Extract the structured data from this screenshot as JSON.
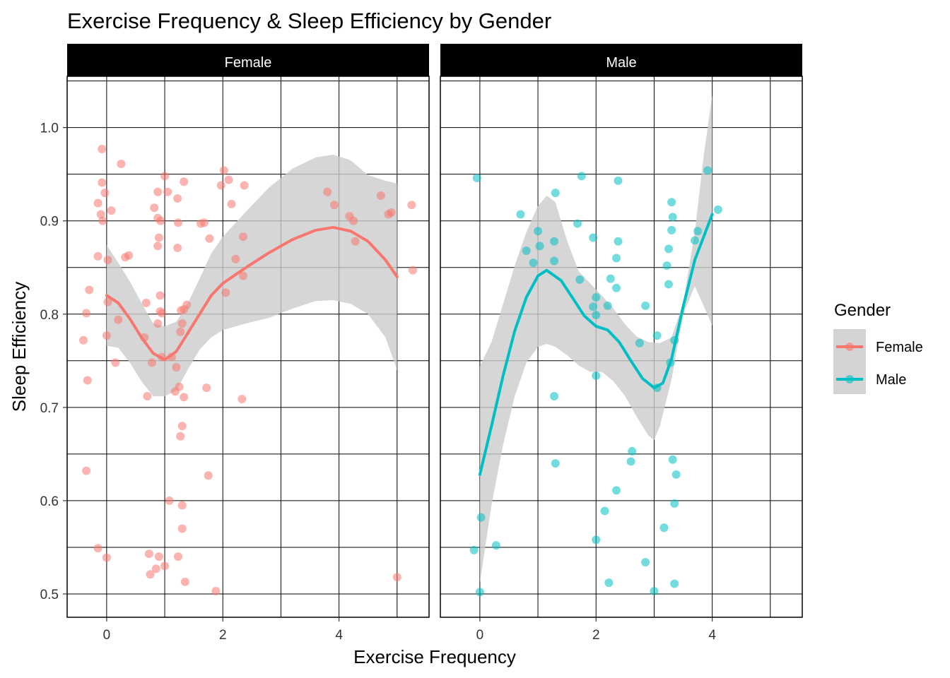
{
  "chart_data": {
    "type": "scatter",
    "title": "Exercise Frequency & Sleep Efficiency by Gender",
    "xlabel": "Exercise Frequency",
    "ylabel": "Sleep Efficiency",
    "xlim": [
      -0.68,
      5.55
    ],
    "ylim": [
      0.475,
      1.055
    ],
    "x_ticks": [
      0,
      2,
      4
    ],
    "y_ticks": [
      0.5,
      0.6,
      0.7,
      0.8,
      0.9,
      1.0
    ],
    "y_tick_labels": [
      "0.5",
      "0.6",
      "0.7",
      "0.8",
      "0.9",
      "1.0"
    ],
    "grid": true,
    "legend": {
      "title": "Gender",
      "placement": "right",
      "entries": [
        "Female",
        "Male"
      ]
    },
    "panels": [
      {
        "name": "Female",
        "color": "#F8766D",
        "points": [
          [
            -0.08,
            0.977
          ],
          [
            0.25,
            0.961
          ],
          [
            -0.08,
            0.941
          ],
          [
            -0.03,
            0.93
          ],
          [
            -0.15,
            0.919
          ],
          [
            0.08,
            0.911
          ],
          [
            -0.1,
            0.907
          ],
          [
            -0.07,
            0.9
          ],
          [
            -0.15,
            0.862
          ],
          [
            0.32,
            0.861
          ],
          [
            0.38,
            0.863
          ],
          [
            0.02,
            0.858
          ],
          [
            -0.3,
            0.826
          ],
          [
            0.02,
            0.813
          ],
          [
            -0.35,
            0.801
          ],
          [
            0.2,
            0.794
          ],
          [
            0.0,
            0.777
          ],
          [
            -0.4,
            0.772
          ],
          [
            0.15,
            0.748
          ],
          [
            -0.33,
            0.729
          ],
          [
            -0.35,
            0.632
          ],
          [
            -0.15,
            0.549
          ],
          [
            0.0,
            0.539
          ],
          [
            1.0,
            0.948
          ],
          [
            0.88,
            0.931
          ],
          [
            1.05,
            0.931
          ],
          [
            1.33,
            0.942
          ],
          [
            1.22,
            0.924
          ],
          [
            0.82,
            0.914
          ],
          [
            0.88,
            0.903
          ],
          [
            0.93,
            0.9
          ],
          [
            1.23,
            0.898
          ],
          [
            1.62,
            0.897
          ],
          [
            1.68,
            0.898
          ],
          [
            0.9,
            0.882
          ],
          [
            1.77,
            0.881
          ],
          [
            0.88,
            0.873
          ],
          [
            1.22,
            0.871
          ],
          [
            0.68,
            0.812
          ],
          [
            0.92,
            0.82
          ],
          [
            1.38,
            0.81
          ],
          [
            0.92,
            0.803
          ],
          [
            1.33,
            0.805
          ],
          [
            1.28,
            0.804
          ],
          [
            0.95,
            0.801
          ],
          [
            1.3,
            0.79
          ],
          [
            0.88,
            0.79
          ],
          [
            1.27,
            0.781
          ],
          [
            0.65,
            0.775
          ],
          [
            0.95,
            0.754
          ],
          [
            1.12,
            0.754
          ],
          [
            0.78,
            0.748
          ],
          [
            1.2,
            0.743
          ],
          [
            1.25,
            0.722
          ],
          [
            1.18,
            0.717
          ],
          [
            1.33,
            0.711
          ],
          [
            0.7,
            0.712
          ],
          [
            1.72,
            0.721
          ],
          [
            1.3,
            0.68
          ],
          [
            1.27,
            0.669
          ],
          [
            1.75,
            0.627
          ],
          [
            1.08,
            0.6
          ],
          [
            1.3,
            0.595
          ],
          [
            1.3,
            0.57
          ],
          [
            0.73,
            0.543
          ],
          [
            0.9,
            0.54
          ],
          [
            1.23,
            0.54
          ],
          [
            0.85,
            0.527
          ],
          [
            1.0,
            0.53
          ],
          [
            0.75,
            0.521
          ],
          [
            1.35,
            0.513
          ],
          [
            1.88,
            0.503
          ],
          [
            2.02,
            0.954
          ],
          [
            2.1,
            0.944
          ],
          [
            1.97,
            0.938
          ],
          [
            2.37,
            0.938
          ],
          [
            2.15,
            0.918
          ],
          [
            2.35,
            0.883
          ],
          [
            2.22,
            0.859
          ],
          [
            2.35,
            0.841
          ],
          [
            2.05,
            0.823
          ],
          [
            2.33,
            0.709
          ],
          [
            3.8,
            0.931
          ],
          [
            3.92,
            0.917
          ],
          [
            4.18,
            0.905
          ],
          [
            4.25,
            0.9
          ],
          [
            4.28,
            0.878
          ],
          [
            4.72,
            0.927
          ],
          [
            4.85,
            0.907
          ],
          [
            4.9,
            0.909
          ],
          [
            5.25,
            0.917
          ],
          [
            5.27,
            0.847
          ],
          [
            5.0,
            0.518
          ]
        ],
        "smooth": [
          [
            0.0,
            0.82
          ],
          [
            0.2,
            0.812
          ],
          [
            0.4,
            0.795
          ],
          [
            0.6,
            0.775
          ],
          [
            0.8,
            0.758
          ],
          [
            1.0,
            0.751
          ],
          [
            1.2,
            0.76
          ],
          [
            1.4,
            0.78
          ],
          [
            1.6,
            0.8
          ],
          [
            1.8,
            0.82
          ],
          [
            2.0,
            0.833
          ],
          [
            2.4,
            0.85
          ],
          [
            2.8,
            0.866
          ],
          [
            3.2,
            0.88
          ],
          [
            3.6,
            0.89
          ],
          [
            3.9,
            0.893
          ],
          [
            4.2,
            0.889
          ],
          [
            4.5,
            0.878
          ],
          [
            4.8,
            0.858
          ],
          [
            5.0,
            0.84
          ]
        ],
        "ribbon_upper": [
          [
            0.0,
            0.874
          ],
          [
            0.2,
            0.855
          ],
          [
            0.4,
            0.835
          ],
          [
            0.6,
            0.812
          ],
          [
            0.8,
            0.79
          ],
          [
            1.0,
            0.787
          ],
          [
            1.2,
            0.792
          ],
          [
            1.4,
            0.812
          ],
          [
            1.6,
            0.838
          ],
          [
            1.8,
            0.865
          ],
          [
            2.0,
            0.883
          ],
          [
            2.4,
            0.91
          ],
          [
            2.8,
            0.936
          ],
          [
            3.2,
            0.956
          ],
          [
            3.6,
            0.968
          ],
          [
            3.9,
            0.971
          ],
          [
            4.2,
            0.965
          ],
          [
            4.5,
            0.949
          ],
          [
            4.8,
            0.943
          ],
          [
            5.0,
            0.94
          ]
        ],
        "ribbon_lower": [
          [
            0.0,
            0.766
          ],
          [
            0.2,
            0.764
          ],
          [
            0.4,
            0.748
          ],
          [
            0.6,
            0.728
          ],
          [
            0.8,
            0.712
          ],
          [
            1.0,
            0.712
          ],
          [
            1.2,
            0.718
          ],
          [
            1.4,
            0.741
          ],
          [
            1.6,
            0.762
          ],
          [
            1.8,
            0.775
          ],
          [
            2.0,
            0.783
          ],
          [
            2.4,
            0.79
          ],
          [
            2.8,
            0.796
          ],
          [
            3.2,
            0.806
          ],
          [
            3.6,
            0.814
          ],
          [
            3.9,
            0.815
          ],
          [
            4.2,
            0.811
          ],
          [
            4.5,
            0.8
          ],
          [
            4.8,
            0.775
          ],
          [
            5.0,
            0.74
          ]
        ]
      },
      {
        "name": "Male",
        "color": "#00BFC4",
        "points": [
          [
            -0.05,
            0.946
          ],
          [
            0.7,
            0.907
          ],
          [
            1.0,
            0.889
          ],
          [
            1.3,
            0.93
          ],
          [
            1.75,
            0.948
          ],
          [
            1.68,
            0.897
          ],
          [
            1.95,
            0.882
          ],
          [
            2.38,
            0.943
          ],
          [
            0.8,
            0.868
          ],
          [
            1.03,
            0.873
          ],
          [
            1.28,
            0.878
          ],
          [
            0.92,
            0.855
          ],
          [
            1.28,
            0.857
          ],
          [
            1.72,
            0.837
          ],
          [
            2.38,
            0.878
          ],
          [
            2.35,
            0.86
          ],
          [
            2.25,
            0.838
          ],
          [
            2.35,
            0.828
          ],
          [
            2.2,
            0.809
          ],
          [
            1.95,
            0.808
          ],
          [
            2.0,
            0.818
          ],
          [
            2.0,
            0.799
          ],
          [
            2.85,
            0.809
          ],
          [
            2.0,
            0.734
          ],
          [
            1.28,
            0.712
          ],
          [
            2.75,
            0.769
          ],
          [
            3.05,
            0.777
          ],
          [
            3.3,
            0.92
          ],
          [
            3.32,
            0.904
          ],
          [
            3.25,
            0.87
          ],
          [
            3.22,
            0.852
          ],
          [
            3.25,
            0.832
          ],
          [
            3.3,
            0.89
          ],
          [
            3.35,
            0.772
          ],
          [
            3.28,
            0.748
          ],
          [
            3.05,
            0.721
          ],
          [
            3.7,
            0.879
          ],
          [
            3.75,
            0.889
          ],
          [
            3.92,
            0.954
          ],
          [
            4.1,
            0.912
          ],
          [
            2.62,
            0.653
          ],
          [
            2.6,
            0.642
          ],
          [
            1.3,
            0.64
          ],
          [
            2.35,
            0.611
          ],
          [
            2.15,
            0.589
          ],
          [
            0.02,
            0.582
          ],
          [
            2.0,
            0.558
          ],
          [
            0.28,
            0.552
          ],
          [
            -0.1,
            0.547
          ],
          [
            3.32,
            0.644
          ],
          [
            3.38,
            0.628
          ],
          [
            3.35,
            0.597
          ],
          [
            3.17,
            0.571
          ],
          [
            2.85,
            0.534
          ],
          [
            2.22,
            0.512
          ],
          [
            3.35,
            0.511
          ],
          [
            0.0,
            0.502
          ],
          [
            3.0,
            0.503
          ]
        ],
        "smooth": [
          [
            0.0,
            0.628
          ],
          [
            0.2,
            0.68
          ],
          [
            0.4,
            0.734
          ],
          [
            0.6,
            0.782
          ],
          [
            0.8,
            0.818
          ],
          [
            1.0,
            0.841
          ],
          [
            1.15,
            0.847
          ],
          [
            1.4,
            0.836
          ],
          [
            1.6,
            0.817
          ],
          [
            1.8,
            0.798
          ],
          [
            2.0,
            0.787
          ],
          [
            2.2,
            0.783
          ],
          [
            2.4,
            0.77
          ],
          [
            2.6,
            0.75
          ],
          [
            2.8,
            0.731
          ],
          [
            3.0,
            0.721
          ],
          [
            3.15,
            0.726
          ],
          [
            3.3,
            0.752
          ],
          [
            3.5,
            0.808
          ],
          [
            3.7,
            0.858
          ],
          [
            4.0,
            0.907
          ]
        ],
        "ribbon_upper": [
          [
            0.0,
            0.744
          ],
          [
            0.2,
            0.77
          ],
          [
            0.4,
            0.811
          ],
          [
            0.6,
            0.852
          ],
          [
            0.8,
            0.888
          ],
          [
            1.0,
            0.916
          ],
          [
            1.15,
            0.927
          ],
          [
            1.3,
            0.92
          ],
          [
            1.5,
            0.879
          ],
          [
            1.7,
            0.846
          ],
          [
            1.9,
            0.833
          ],
          [
            2.1,
            0.82
          ],
          [
            2.3,
            0.806
          ],
          [
            2.5,
            0.789
          ],
          [
            2.7,
            0.776
          ],
          [
            2.9,
            0.77
          ],
          [
            3.1,
            0.769
          ],
          [
            3.3,
            0.775
          ],
          [
            3.5,
            0.812
          ],
          [
            3.7,
            0.888
          ],
          [
            3.85,
            0.968
          ],
          [
            4.0,
            1.035
          ]
        ],
        "ribbon_lower": [
          [
            0.0,
            0.512
          ],
          [
            0.2,
            0.595
          ],
          [
            0.4,
            0.66
          ],
          [
            0.6,
            0.712
          ],
          [
            0.8,
            0.748
          ],
          [
            1.0,
            0.765
          ],
          [
            1.15,
            0.768
          ],
          [
            1.3,
            0.765
          ],
          [
            1.5,
            0.756
          ],
          [
            1.7,
            0.745
          ],
          [
            1.9,
            0.738
          ],
          [
            2.1,
            0.738
          ],
          [
            2.3,
            0.728
          ],
          [
            2.5,
            0.712
          ],
          [
            2.7,
            0.69
          ],
          [
            2.9,
            0.67
          ],
          [
            3.0,
            0.665
          ],
          [
            3.1,
            0.68
          ],
          [
            3.3,
            0.73
          ],
          [
            3.5,
            0.8
          ],
          [
            3.7,
            0.83
          ],
          [
            4.0,
            0.788
          ]
        ]
      }
    ]
  }
}
